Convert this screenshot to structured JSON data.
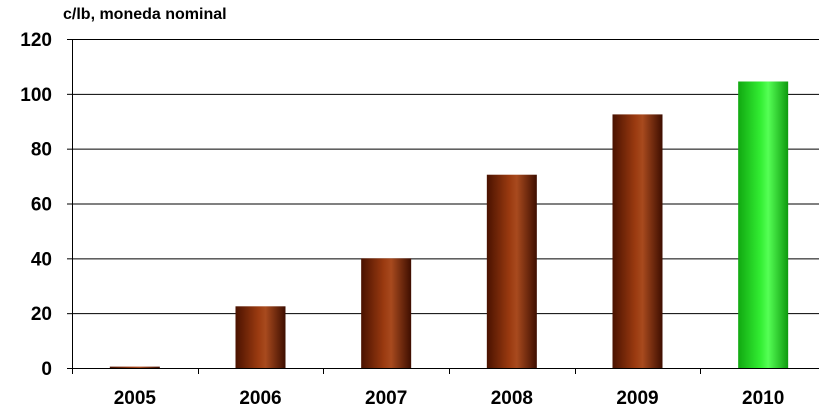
{
  "chart_data": {
    "type": "bar",
    "ylabel": "c/lb, moneda nominal",
    "categories": [
      "2005",
      "2006",
      "2007",
      "2008",
      "2009",
      "2010"
    ],
    "values": [
      0.5,
      22.5,
      40,
      70.5,
      92.5,
      104.5
    ],
    "bar_colors": [
      "#8b2a05",
      "#8b2a05",
      "#8b2a05",
      "#8b2a05",
      "#8b2a05",
      "#22dd22"
    ],
    "ylim": [
      0,
      120
    ],
    "yticks": [
      "0",
      "20",
      "40",
      "60",
      "80",
      "100",
      "120"
    ],
    "grid": true,
    "legend": "none"
  }
}
